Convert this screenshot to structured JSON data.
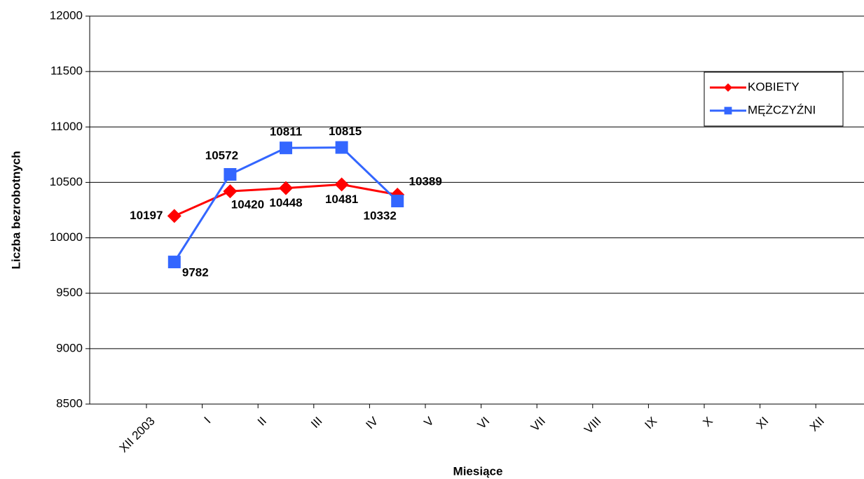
{
  "chart_data": {
    "type": "line",
    "categories": [
      "XII 2003",
      "I",
      "II",
      "III",
      "IV",
      "V",
      "VI",
      "VII",
      "VIII",
      "IX",
      "X",
      "XI",
      "XII"
    ],
    "series": [
      {
        "name": "KOBIETY",
        "color": "#ff0000",
        "marker": "diamond",
        "values": [
          10197,
          10420,
          10448,
          10481,
          10389,
          null,
          null,
          null,
          null,
          null,
          null,
          null,
          null
        ]
      },
      {
        "name": "MĘŻCZYŹNI",
        "color": "#3366ff",
        "marker": "square",
        "values": [
          9782,
          10572,
          10811,
          10815,
          10332,
          null,
          null,
          null,
          null,
          null,
          null,
          null,
          null
        ]
      }
    ],
    "ylim": [
      8500,
      12000
    ],
    "yticks": [
      8500,
      9000,
      9500,
      10000,
      10500,
      11000,
      11500,
      12000
    ],
    "xlabel": "Miesiące",
    "ylabel": "Liczba bezrobotnych",
    "grid": true,
    "legend": "upper right",
    "data_labels": true
  }
}
